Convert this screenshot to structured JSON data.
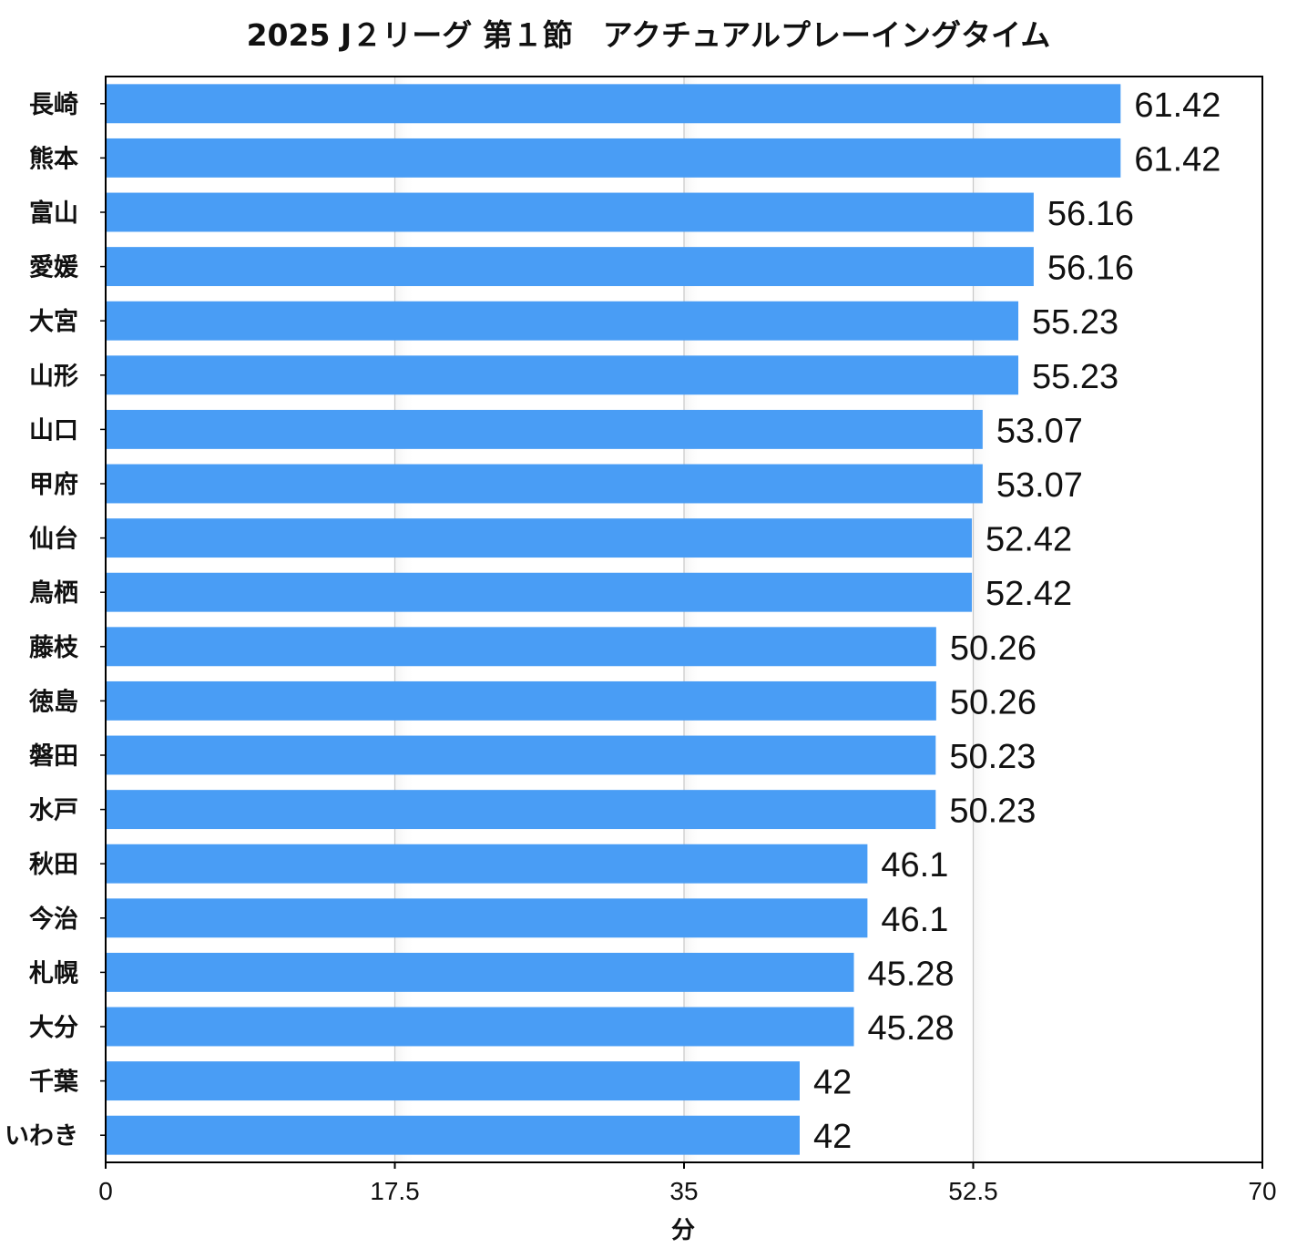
{
  "chart_data": {
    "type": "bar",
    "orientation": "horizontal",
    "title": "2025 J２リーグ 第１節　アクチュアルプレーイングタイム",
    "xlabel": "分",
    "ylabel": "",
    "xlim": [
      0,
      70
    ],
    "xticks": [
      "0",
      "17.5",
      "35",
      "52.5",
      "70"
    ],
    "grid": "vertical",
    "bar_color": "#499df5",
    "categories": [
      "長崎",
      "熊本",
      "富山",
      "愛媛",
      "大宮",
      "山形",
      "山口",
      "甲府",
      "仙台",
      "鳥栖",
      "藤枝",
      "徳島",
      "磐田",
      "水戸",
      "秋田",
      "今治",
      "札幌",
      "大分",
      "千葉",
      "いわき"
    ],
    "values": [
      61.42,
      61.42,
      56.16,
      56.16,
      55.23,
      55.23,
      53.07,
      53.07,
      52.42,
      52.42,
      50.26,
      50.26,
      50.23,
      50.23,
      46.1,
      46.1,
      45.28,
      45.28,
      42,
      42
    ],
    "value_labels": [
      "61.42",
      "61.42",
      "56.16",
      "56.16",
      "55.23",
      "55.23",
      "53.07",
      "53.07",
      "52.42",
      "52.42",
      "50.26",
      "50.26",
      "50.23",
      "50.23",
      "46.1",
      "46.1",
      "45.28",
      "45.28",
      "42",
      "42"
    ]
  }
}
